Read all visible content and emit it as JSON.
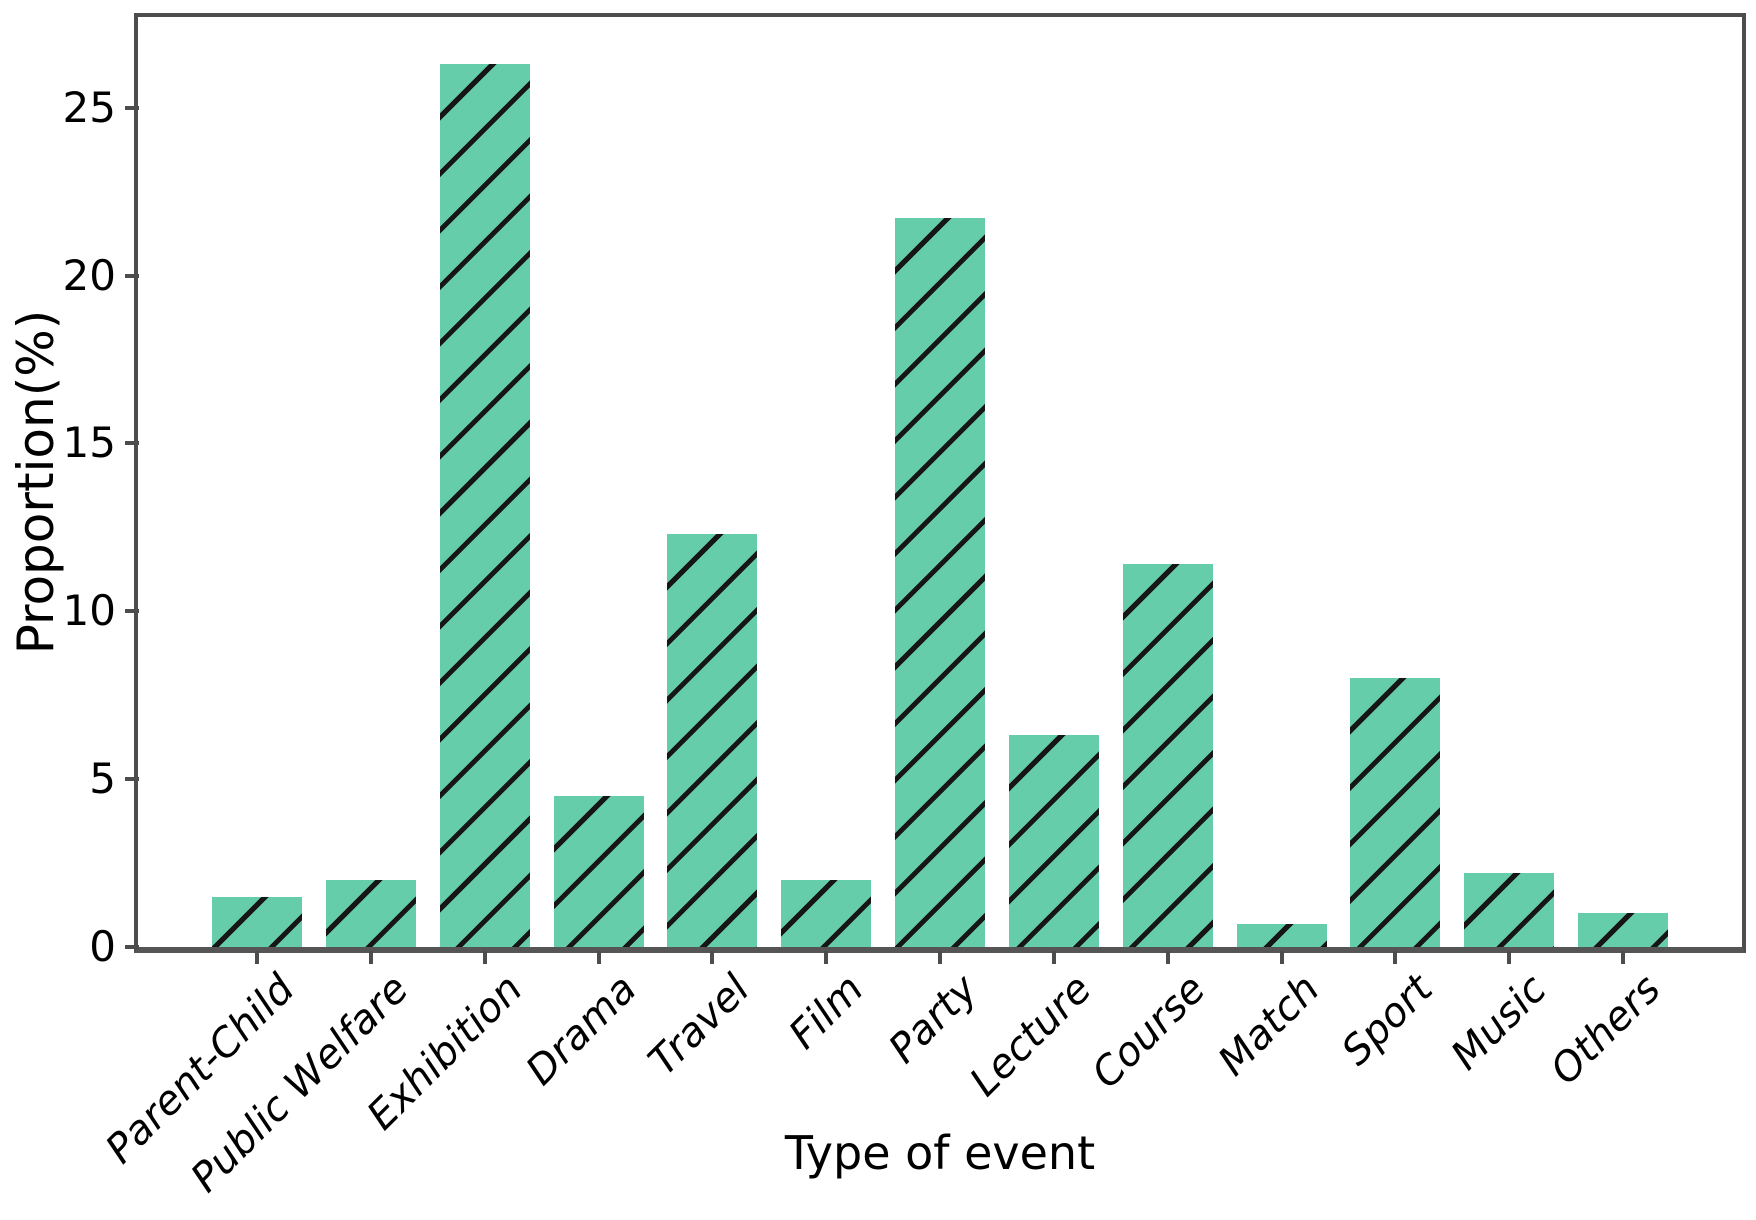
{
  "chart_data": {
    "type": "bar",
    "title": "",
    "xlabel": "Type of event",
    "ylabel": "Proportion(%)",
    "categories": [
      "Parent-Child",
      "Public Welfare",
      "Exhibition",
      "Drama",
      "Travel",
      "Film",
      "Party",
      "Lecture",
      "Course",
      "Match",
      "Sport",
      "Music",
      "Others"
    ],
    "values": [
      1.5,
      2.0,
      26.3,
      4.5,
      12.3,
      2.0,
      21.7,
      6.3,
      11.4,
      0.7,
      8.0,
      2.2,
      1.0
    ],
    "yticks": [
      0,
      5,
      10,
      15,
      20,
      25
    ],
    "ylim": [
      0,
      27.7
    ],
    "grid": false,
    "legend": null,
    "x_tick_label_rotation_deg": 45,
    "hatch": "/",
    "bar_color": "#66cdaa",
    "hatch_color": "#161616",
    "spine_color": "#4d4d4d",
    "text_color": "#000000",
    "background_color": "#ffffff"
  }
}
